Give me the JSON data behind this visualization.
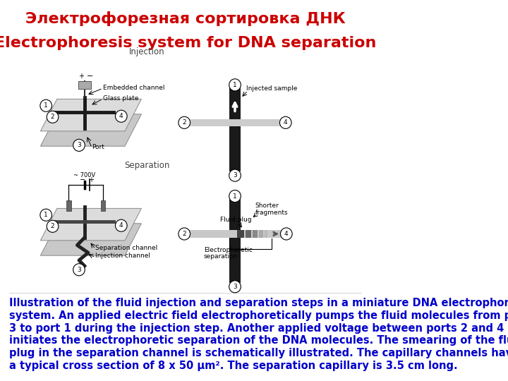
{
  "title_line1": "Электрофорезная сортировка ДНК",
  "title_line2": "Electrophoresis system for DNA separation",
  "title_color": "#cc0000",
  "title_fontsize": 16,
  "bg_color": "#ffffff",
  "body_text_color": "#0000cc",
  "body_fontsize": 10.5,
  "injection_label": "Injection",
  "separation_label": "Separation",
  "body_lines": [
    "Illustration of the fluid injection and separation steps in a miniature DNA electrophoresis",
    "system. An applied electric field electrophoretically pumps the fluid molecules from port",
    "3 to port 1 during the injection step. Another applied voltage between ports 2 and 4",
    "initiates the electrophoretic separation of the DNA molecules. The smearing of the fluid",
    "plug in the separation channel is schematically illustrated. The capillary channels have",
    "a typical cross section of 8 x 50 μm². The separation capillary is 3.5 cm long."
  ]
}
